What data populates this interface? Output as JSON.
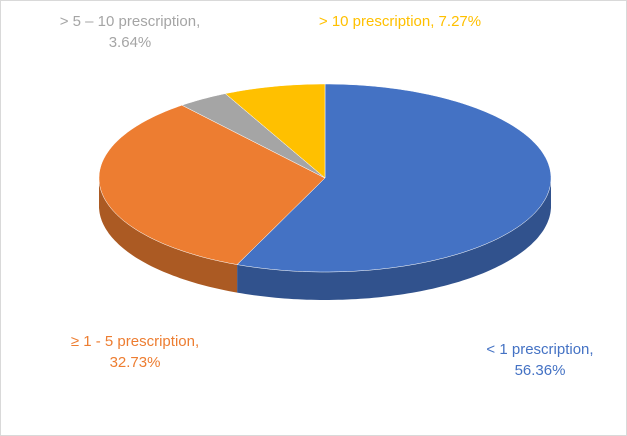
{
  "chart_data": {
    "type": "pie3d",
    "values": [
      56.36,
      32.73,
      3.64,
      7.27
    ],
    "value_labels": [
      [
        "< 1 prescription,",
        "56.36%"
      ],
      [
        "≥ 1 - 5 prescription,",
        "32.73%"
      ],
      [
        "> 5 – 10 prescription,",
        "3.64%"
      ],
      [
        "> 10 prescription, 7.27%"
      ]
    ],
    "colors": [
      "#4472c4",
      "#ed7d31",
      "#a5a5a5",
      "#ffc000"
    ]
  }
}
